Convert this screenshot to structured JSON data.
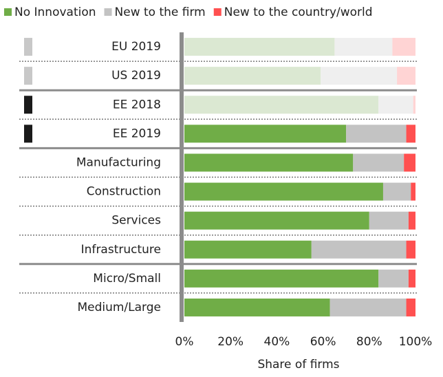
{
  "chart_data": {
    "type": "stacked_barh",
    "categories": [
      "EU 2019",
      "US 2019",
      "EE 2018",
      "EE 2019",
      "Manufacturing",
      "Construction",
      "Services",
      "Infrastructure",
      "Micro/Small",
      "Medium/Large"
    ],
    "series": [
      {
        "name": "No Innovation",
        "color": "#70ad47",
        "faded_color": "#dbe8d2",
        "values": [
          65,
          59,
          84,
          70,
          73,
          86,
          80,
          55,
          84,
          63
        ]
      },
      {
        "name": "New to the firm",
        "color": "#c3c3c3",
        "faded_color": "#efefef",
        "values": [
          25,
          33,
          15,
          26,
          22,
          12,
          17,
          41,
          13,
          33
        ]
      },
      {
        "name": "New to the country/world",
        "color": "#ff5050",
        "faded_color": "#ffd4d4",
        "values": [
          10,
          8,
          1,
          4,
          5,
          2,
          3,
          4,
          3,
          4
        ]
      }
    ],
    "faded": [
      true,
      true,
      true,
      false,
      false,
      false,
      false,
      false,
      false,
      false
    ],
    "marker_colors": [
      "#c8c8c8",
      "#c8c8c8",
      "#1a1a1a",
      "#1a1a1a",
      null,
      null,
      null,
      null,
      null,
      null
    ],
    "group_sizes": [
      2,
      2,
      4,
      2
    ],
    "xlim": [
      0,
      100
    ],
    "xticks": [
      {
        "value": 0,
        "label": "0%"
      },
      {
        "value": 20,
        "label": "20%"
      },
      {
        "value": 40,
        "label": "40%"
      },
      {
        "value": 60,
        "label": "60%"
      },
      {
        "value": 80,
        "label": "80%"
      },
      {
        "value": 100,
        "label": "100%"
      }
    ],
    "xlabel": "Share of firms",
    "legend": "top"
  }
}
